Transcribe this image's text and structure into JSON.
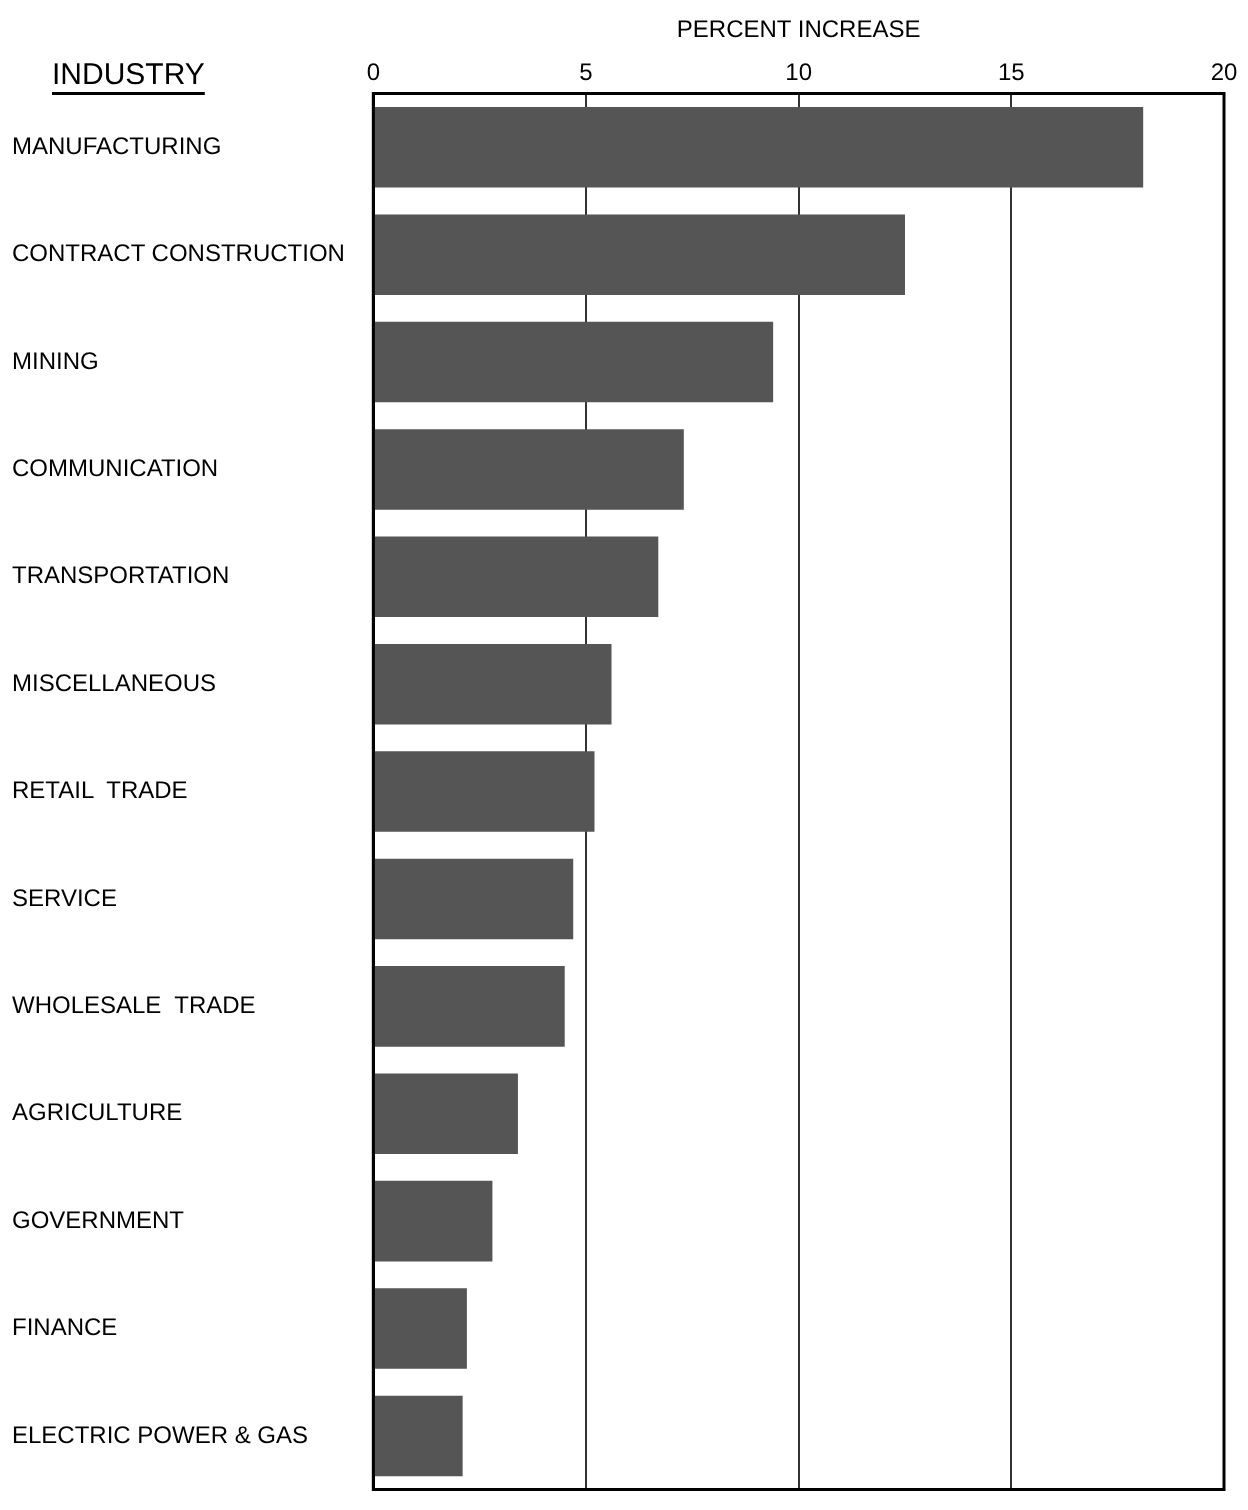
{
  "chart_data": {
    "type": "bar",
    "orientation": "horizontal",
    "xlabel": "PERCENT INCREASE",
    "ylabel": "INDUSTRY",
    "categories": [
      "MANUFACTURING",
      "CONTRACT CONSTRUCTION",
      "MINING",
      "COMMUNICATION",
      "TRANSPORTATION",
      "MISCELLANEOUS",
      "RETAIL  TRADE",
      "SERVICE",
      "WHOLESALE  TRADE",
      "AGRICULTURE",
      "GOVERNMENT",
      "FINANCE",
      "ELECTRIC POWER & GAS"
    ],
    "values": [
      18.1,
      12.5,
      9.4,
      7.3,
      6.7,
      5.6,
      5.2,
      4.7,
      4.5,
      3.4,
      2.8,
      2.2,
      2.1
    ],
    "color": "#555555",
    "xlim": [
      0,
      20
    ],
    "xticks": [
      0,
      5,
      10,
      15,
      20
    ],
    "grid": "x",
    "legend": false
  }
}
